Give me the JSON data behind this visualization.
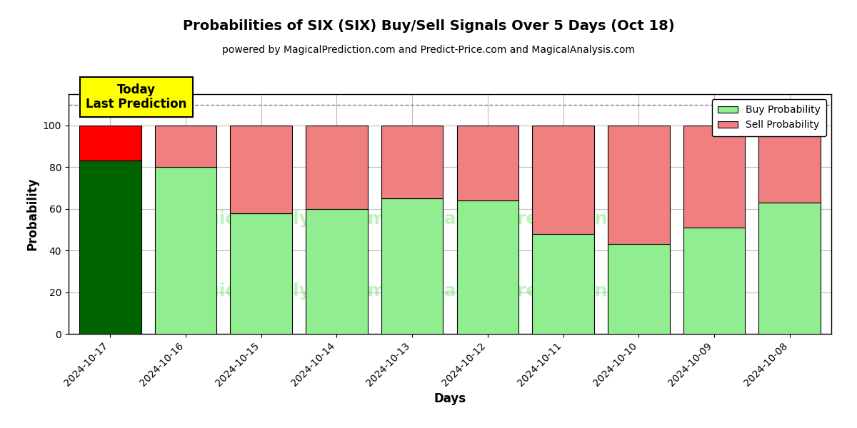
{
  "title": "Probabilities of SIX (SIX) Buy/Sell Signals Over 5 Days (Oct 18)",
  "subtitle": "powered by MagicalPrediction.com and Predict-Price.com and MagicalAnalysis.com",
  "xlabel": "Days",
  "ylabel": "Probability",
  "dates": [
    "2024-10-17",
    "2024-10-16",
    "2024-10-15",
    "2024-10-14",
    "2024-10-13",
    "2024-10-12",
    "2024-10-11",
    "2024-10-10",
    "2024-10-09",
    "2024-10-08"
  ],
  "buy_probs": [
    83,
    80,
    58,
    60,
    65,
    64,
    48,
    43,
    51,
    63
  ],
  "sell_probs": [
    17,
    20,
    42,
    40,
    35,
    36,
    52,
    57,
    49,
    37
  ],
  "today_buy_color": "#006400",
  "today_sell_color": "#ff0000",
  "buy_color_light": "#90EE90",
  "sell_color_light": "#F08080",
  "today_annotation_bg": "#ffff00",
  "today_annotation_text": "Today\nLast Prediction",
  "ylim": [
    0,
    115
  ],
  "yticks": [
    0,
    20,
    40,
    60,
    80,
    100
  ],
  "dashed_line_y": 110,
  "background_color": "#ffffff",
  "grid_color": "#bbbbbb",
  "figsize": [
    12,
    6
  ],
  "bar_width": 0.82
}
